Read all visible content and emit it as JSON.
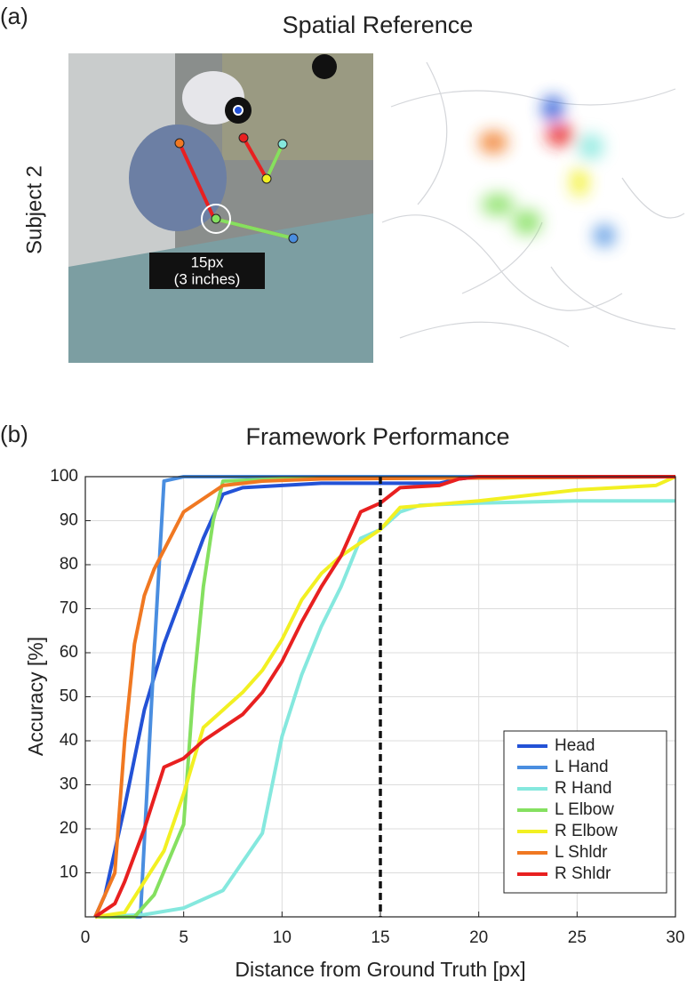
{
  "panel_a": {
    "label": "(a)",
    "title": "Spatial Reference",
    "row_label": "Subject 2",
    "scale_text": "15px",
    "scale_note": "(3 inches)"
  },
  "chart_data": {
    "type": "line",
    "panel_label": "(b)",
    "title": "Framework Performance",
    "x_label": "Distance from Ground Truth [px]",
    "y_label": "Accuracy [%]",
    "xlim": [
      0,
      30
    ],
    "ylim": [
      0,
      100
    ],
    "xticks": [
      0,
      5,
      10,
      15,
      20,
      25,
      30
    ],
    "yticks": [
      10,
      20,
      30,
      40,
      50,
      60,
      70,
      80,
      90,
      100
    ],
    "grid": true,
    "legend": "lower right",
    "ref_line_x": 15,
    "series": [
      {
        "name": "Head",
        "color": "#2352d6",
        "x": [
          0.5,
          1,
          2,
          3,
          4,
          5,
          6,
          7,
          8,
          10,
          12,
          15,
          18,
          19,
          20,
          30
        ],
        "values": [
          0,
          5,
          25,
          47,
          62,
          74,
          86,
          96,
          97.5,
          98,
          98.5,
          98.5,
          98.5,
          99.5,
          100,
          100
        ]
      },
      {
        "name": "L Hand",
        "color": "#4a8ee0",
        "x": [
          0.5,
          2.8,
          3.5,
          4,
          5,
          30
        ],
        "values": [
          0,
          0,
          60,
          99,
          100,
          100
        ]
      },
      {
        "name": "R Hand",
        "color": "#85e8de",
        "x": [
          0.5,
          3,
          5,
          7,
          9,
          10,
          11,
          12,
          13,
          14,
          15,
          16,
          17,
          20,
          25,
          30
        ],
        "values": [
          0,
          0.5,
          2,
          6,
          19,
          41,
          55,
          66,
          75,
          86,
          88,
          92,
          93.5,
          94,
          94.5,
          94.5
        ]
      },
      {
        "name": "L Elbow",
        "color": "#85e060",
        "x": [
          0.5,
          2.5,
          3.5,
          5,
          5.5,
          6,
          6.5,
          7,
          10,
          30
        ],
        "values": [
          0,
          0,
          5,
          21,
          52,
          75,
          90,
          99,
          99.5,
          100
        ]
      },
      {
        "name": "R Elbow",
        "color": "#f2f022",
        "x": [
          0.5,
          2,
          3,
          4,
          5,
          6,
          7,
          8,
          9,
          10,
          11,
          12,
          13,
          14,
          15,
          16,
          20,
          25,
          29,
          30
        ],
        "values": [
          0,
          1,
          8,
          15,
          28,
          43,
          47,
          51,
          56,
          63,
          72,
          78,
          82,
          85,
          88,
          93,
          94.5,
          97,
          98,
          100
        ]
      },
      {
        "name": "L Shldr",
        "color": "#f07822",
        "x": [
          0.5,
          1.5,
          2,
          2.5,
          3,
          3.5,
          5,
          6,
          7,
          9,
          12,
          30
        ],
        "values": [
          0,
          10,
          40,
          62,
          73,
          79,
          92,
          95,
          98,
          99,
          99.5,
          100
        ]
      },
      {
        "name": "R Shldr",
        "color": "#e82020",
        "x": [
          0.5,
          1.5,
          2,
          3,
          4,
          5,
          6,
          7,
          8,
          9,
          10,
          11,
          12,
          13,
          14,
          15,
          16,
          18,
          19,
          20,
          30
        ],
        "values": [
          0,
          3,
          8,
          20,
          34,
          36,
          40,
          43,
          46,
          51,
          58,
          67,
          75,
          82,
          92,
          94,
          97.5,
          98,
          99.5,
          100,
          100
        ]
      }
    ]
  }
}
